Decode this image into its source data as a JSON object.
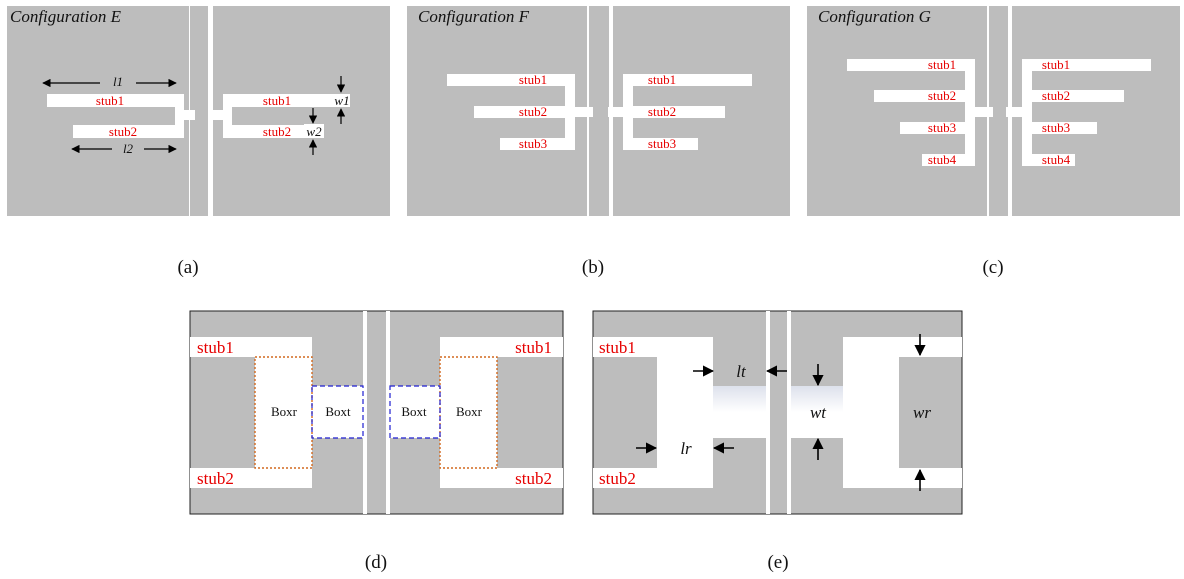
{
  "panels": {
    "a": {
      "title": "Configuration E",
      "caption": "(a)",
      "left_stubs": [
        "stub1",
        "stub2"
      ],
      "right_stubs": [
        "stub1",
        "stub2"
      ],
      "dims": {
        "l1": "l1",
        "l2": "l2",
        "w1": "w1",
        "w2": "w2"
      }
    },
    "b": {
      "title": "Configuration F",
      "caption": "(b)",
      "left_stubs": [
        "stub1",
        "stub2",
        "stub3"
      ],
      "right_stubs": [
        "stub1",
        "stub2",
        "stub3"
      ]
    },
    "c": {
      "title": "Configuration G",
      "caption": "(c)",
      "left_stubs": [
        "stub1",
        "stub2",
        "stub3",
        "stub4"
      ],
      "right_stubs": [
        "stub1",
        "stub2",
        "stub3",
        "stub4"
      ]
    },
    "d": {
      "caption": "(d)",
      "left_stubs": [
        "stub1",
        "stub2"
      ],
      "right_stubs": [
        "stub1",
        "stub2"
      ],
      "box_r": "Boxr",
      "box_t": "Boxt"
    },
    "e": {
      "caption": "(e)",
      "left_stubs": [
        "stub1",
        "stub2"
      ],
      "dims": {
        "lt": "lt",
        "lr": "lr",
        "wt": "wt",
        "wr": "wr"
      }
    }
  },
  "colors": {
    "background": "#bdbdbd",
    "conductor": "#ffffff",
    "stub_label": "#e60000",
    "boxr_outline": "#d2691e",
    "boxt_outline": "#1f1fd0"
  }
}
